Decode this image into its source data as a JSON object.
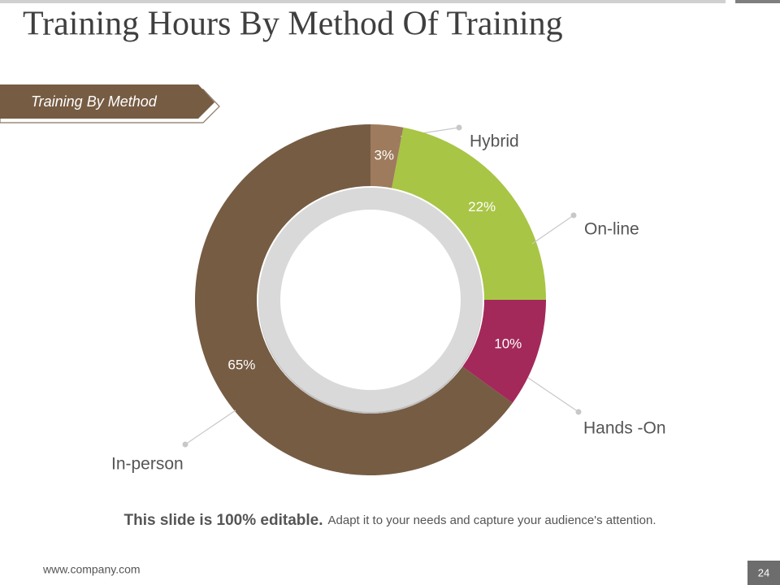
{
  "header": {
    "title": "Training Hours By Method Of Training",
    "tag": "Training By Method"
  },
  "chart_data": {
    "type": "donut",
    "categories": [
      "Hybrid",
      "On-line",
      "Hands -On",
      "In-person"
    ],
    "values": [
      3,
      22,
      10,
      65
    ],
    "value_labels": [
      "3%",
      "22%",
      "10%",
      "65%"
    ],
    "colors": [
      "#9e7b5c",
      "#a8c545",
      "#a3295a",
      "#765c43"
    ]
  },
  "footer": {
    "note_bold": "This slide is 100% editable.",
    "note": "Adapt it to your needs and capture your audience's attention.",
    "website": "www.company.com",
    "page": "24"
  }
}
